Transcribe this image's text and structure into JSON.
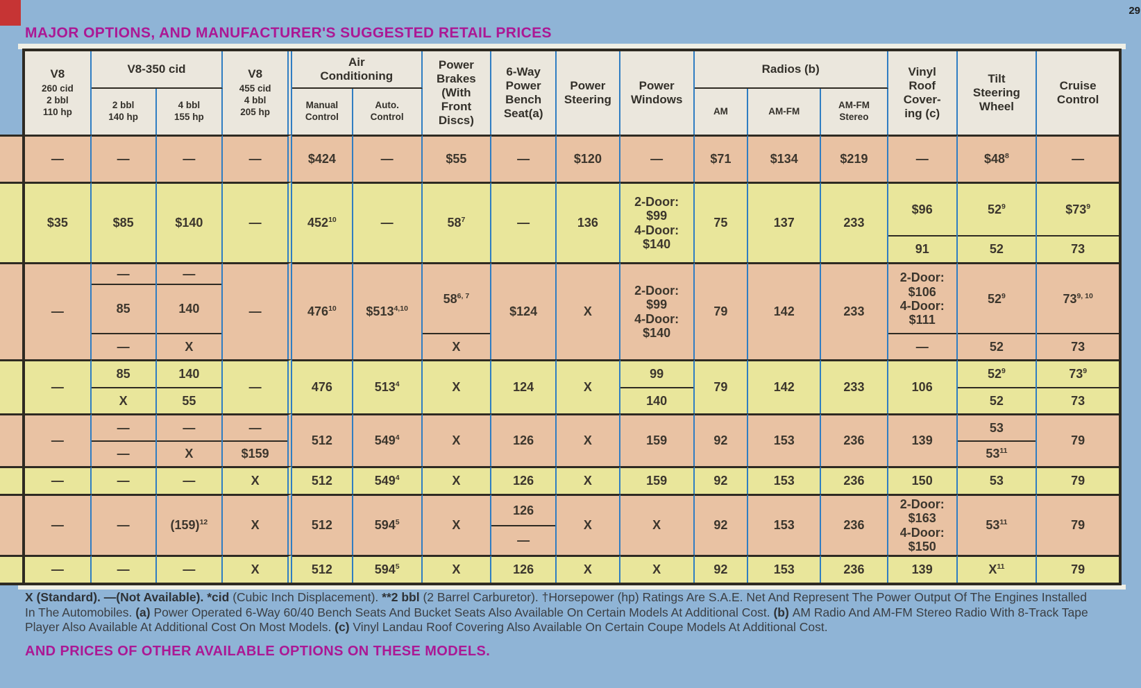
{
  "page": {
    "page_number": "29",
    "title": "MAJOR OPTIONS, AND MANUFACTURER'S SUGGESTED RETAIL PRICES",
    "bottom_caption": "AND PRICES OF OTHER AVAILABLE OPTIONS ON THESE MODELS.",
    "colors": {
      "background": "#8fb4d6",
      "salmon_row": "#e9c2a3",
      "yellow_row": "#e9e69b",
      "header_bg": "#ebe7dd",
      "grid_blue": "#2f7dc2",
      "line_dark": "#2e2a22",
      "accent_magenta": "#ab1894",
      "corner_red": "#c63434"
    }
  },
  "table": {
    "header_columns": [
      {
        "type": "single",
        "title": "V8",
        "sub": "260 cid\n2 bbl\n110 hp"
      },
      {
        "type": "group",
        "title": "V8-350 cid",
        "children": [
          "2 bbl\n140 hp",
          "4 bbl\n155 hp"
        ]
      },
      {
        "type": "single",
        "title": "V8",
        "sub": "455 cid\n4 bbl\n205 hp"
      },
      {
        "type": "group",
        "title": "Air\nConditioning",
        "children": [
          "Manual\nControl",
          "Auto.\nControl"
        ]
      },
      {
        "type": "single",
        "title": "Power\nBrakes\n(With\nFront\nDiscs)"
      },
      {
        "type": "single",
        "title": "6-Way\nPower\nBench\nSeat(a)"
      },
      {
        "type": "single",
        "title": "Power\nSteering"
      },
      {
        "type": "single",
        "title": "Power\nWindows"
      },
      {
        "type": "group",
        "title": "Radios (b)",
        "children": [
          "AM",
          "AM-FM",
          "AM-FM\nStereo"
        ]
      },
      {
        "type": "single",
        "title": "Vinyl\nRoof\nCover-\ning (c)"
      },
      {
        "type": "single",
        "title": "Tilt\nSteering\nWheel"
      },
      {
        "type": "single",
        "title": "Cruise\nControl"
      }
    ],
    "rows": [
      {
        "color": "salmon",
        "cells": [
          "—",
          "—",
          "—",
          "—",
          "$424",
          "—",
          "$55",
          "—",
          "$120",
          "—",
          "$71",
          "$134",
          "$219",
          "—",
          "$48^8",
          "—"
        ]
      },
      {
        "color": "yellow",
        "cells": [
          "$35",
          "$85",
          "$140",
          "—",
          "452^10",
          "—",
          "58^7",
          "—",
          "136",
          "2-Door:\n$99\n4-Door:\n$140",
          "75",
          "137",
          "233",
          {
            "p": [
              "$96",
              "91"
            ],
            "s": [
              78,
              38
            ]
          },
          {
            "p": [
              "52^9",
              "52"
            ],
            "s": [
              78,
              38
            ]
          },
          {
            "p": [
              "$73^9",
              "73"
            ],
            "s": [
              78,
              38
            ]
          }
        ]
      },
      {
        "color": "salmon",
        "cells": [
          "—",
          {
            "p": [
              "—",
              "85",
              "—"
            ],
            "s": [
              29,
              73,
              38
            ]
          },
          {
            "p": [
              "—",
              "140",
              "X"
            ],
            "s": [
              29,
              73,
              38
            ]
          },
          "—",
          "476^10",
          "$513^4,10",
          {
            "p": [
              "58^6, 7",
              "X"
            ],
            "s": [
              104,
              36
            ]
          },
          "$124",
          "X",
          "2-Door:\n$99\n4-Door:\n$140",
          "79",
          "142",
          "233",
          {
            "p": [
              "2-Door:\n$106\n4-Door:\n$111",
              "—"
            ],
            "s": [
              104,
              36
            ]
          },
          {
            "p": [
              "52^9",
              "52"
            ],
            "s": [
              104,
              36
            ]
          },
          {
            "p": [
              "73^9, 10",
              "73"
            ],
            "s": [
              104,
              36
            ]
          }
        ]
      },
      {
        "color": "yellow",
        "cells": [
          "—",
          {
            "p": [
              "85",
              "X"
            ]
          },
          {
            "p": [
              "140",
              "55"
            ]
          },
          "—",
          "476",
          "513^4",
          "X",
          "124",
          "X",
          {
            "p": [
              "99",
              "140"
            ]
          },
          "79",
          "142",
          "233",
          "106",
          {
            "p": [
              "52^9",
              "52"
            ]
          },
          {
            "p": [
              "73^9",
              "73"
            ]
          }
        ]
      },
      {
        "color": "salmon",
        "cells": [
          "—",
          {
            "p": [
              "—",
              "—"
            ]
          },
          {
            "p": [
              "—",
              "X"
            ]
          },
          {
            "p": [
              "—",
              "$159"
            ]
          },
          "512",
          "549^4",
          "X",
          "126",
          "X",
          "159",
          "92",
          "153",
          "236",
          "139",
          {
            "p": [
              "53",
              "53^11"
            ]
          },
          "79"
        ]
      },
      {
        "color": "yellow",
        "cells": [
          "—",
          "—",
          "—",
          "X",
          "512",
          "549^4",
          "X",
          "126",
          "X",
          "159",
          "92",
          "153",
          "236",
          "150",
          "53",
          "79"
        ]
      },
      {
        "color": "salmon",
        "cells": [
          "—",
          "—",
          "(159)^12",
          "X",
          "512",
          "594^5",
          "X",
          {
            "p": [
              "126",
              "—"
            ]
          },
          "X",
          "X",
          "92",
          "153",
          "236",
          "2-Door:\n$163\n4-Door:\n$150",
          "53^11",
          "79"
        ]
      },
      {
        "color": "yellow",
        "cells": [
          "—",
          "—",
          "—",
          "X",
          "512",
          "594^5",
          "X",
          "126",
          "X",
          "X",
          "92",
          "153",
          "236",
          "139",
          "X^11",
          "79"
        ]
      }
    ]
  },
  "footnotes": {
    "segments": [
      {
        "b": 1,
        "t": "X (Standard). "
      },
      {
        "b": 1,
        "t": "—(Not Available). "
      },
      {
        "b": 1,
        "t": "*cid "
      },
      {
        "b": 0,
        "t": "(Cubic Inch Displacement). "
      },
      {
        "b": 1,
        "t": "**2 bbl "
      },
      {
        "b": 0,
        "t": "(2 Barrel Carburetor). †Horsepower (hp) Ratings Are S.A.E. Net And Represent The Power Output Of The Engines Installed In The Automobiles. "
      },
      {
        "b": 1,
        "t": "(a) "
      },
      {
        "b": 0,
        "t": "Power Operated 6-Way 60/40 Bench Seats And Bucket Seats Also Available On Certain Models At Additional Cost. "
      },
      {
        "b": 1,
        "t": "(b) "
      },
      {
        "b": 0,
        "t": "AM Radio And AM-FM Stereo Radio With 8-Track Tape Player Also Available At Additional Cost On Most Models. "
      },
      {
        "b": 1,
        "t": "(c) "
      },
      {
        "b": 0,
        "t": "Vinyl Landau Roof Covering Also Available On Certain Coupe Models At Additional Cost."
      }
    ]
  }
}
